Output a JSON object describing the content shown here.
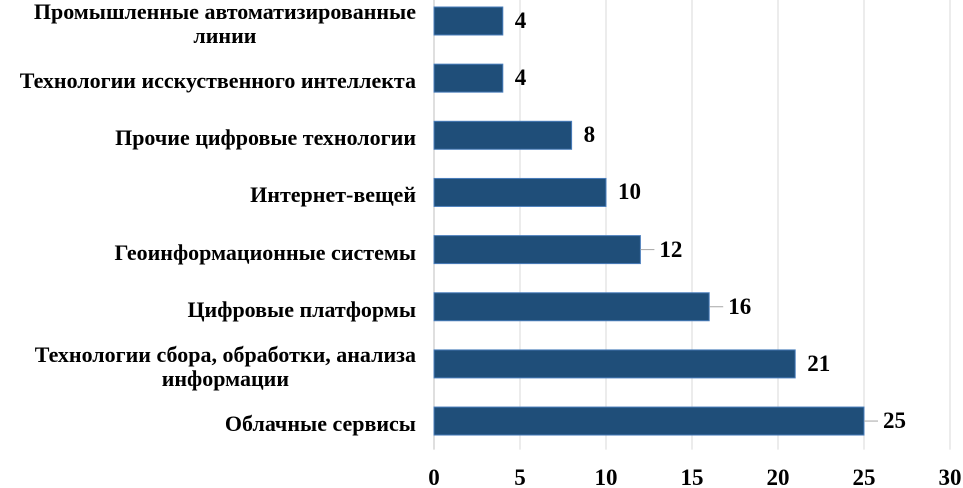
{
  "chart_data": {
    "type": "bar",
    "orientation": "horizontal",
    "categories": [
      "Промышленные автоматизированные\nлинии",
      "Технологии исскуственного интеллекта",
      "Прочие цифровые технологии",
      "Интернет-вещей",
      "Геоинформационные системы",
      "Цифровые платформы",
      "Технологии сбора, обработки, анализа\nинформации",
      "Облачные сервисы"
    ],
    "values": [
      4,
      4,
      8,
      10,
      12,
      16,
      21,
      25
    ],
    "xlim": [
      0,
      30
    ],
    "xticks": [
      0,
      5,
      10,
      15,
      20,
      25,
      30
    ],
    "grid": true,
    "data_labels": true,
    "label_leader_lines": [
      false,
      false,
      false,
      false,
      true,
      true,
      false,
      true
    ],
    "colors": {
      "bar": "#1f4e79",
      "bar_edge": "#4a7ebb",
      "grid": "#d9d9d9",
      "axis": "#bfbfbf",
      "leader": "#a6a6a6",
      "text": "#000000"
    }
  }
}
